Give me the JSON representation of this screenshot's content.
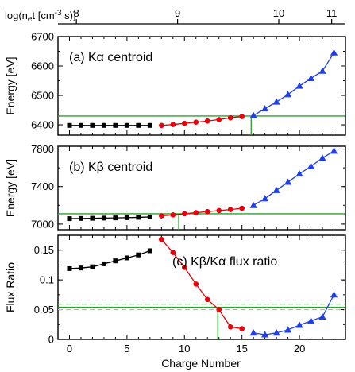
{
  "top_axis": {
    "label": "log(n",
    "label_sub": "e",
    "label_rest": "t [cm",
    "label_sup": "-3",
    "label_end": " s)]",
    "ticks": [
      {
        "value": 8,
        "label": "8",
        "charge": 0.6
      },
      {
        "value": 9,
        "label": "9",
        "charge": 9.4
      },
      {
        "value": 10,
        "label": "10",
        "charge": 18.2
      },
      {
        "value": 11,
        "label": "11",
        "charge": 22.8
      }
    ]
  },
  "chart_data": [
    {
      "type": "line",
      "title": "(a) Kα centroid",
      "ylabel": "Energy [eV]",
      "xlim": [
        -1,
        24
      ],
      "ylim": [
        6365,
        6700
      ],
      "yticks": [
        6400,
        6500,
        6600,
        6700
      ],
      "reference": {
        "y": 6430,
        "x": 15.8
      },
      "series": [
        {
          "marker": "square",
          "color": "#000000",
          "x": [
            0,
            1,
            2,
            3,
            4,
            5,
            6,
            7
          ],
          "y": [
            6398,
            6398,
            6398,
            6398,
            6398,
            6398,
            6398,
            6398
          ]
        },
        {
          "marker": "circle",
          "color": "#e8000b",
          "x": [
            8,
            9,
            10,
            11,
            12,
            13,
            14,
            15
          ],
          "y": [
            6398,
            6401,
            6405,
            6409,
            6413,
            6418,
            6424,
            6428
          ]
        },
        {
          "marker": "triangle",
          "color": "#1f3fe8",
          "x": [
            16,
            17,
            18,
            19,
            20,
            21,
            22,
            23
          ],
          "y": [
            6432,
            6455,
            6478,
            6503,
            6532,
            6558,
            6583,
            6645
          ]
        }
      ]
    },
    {
      "type": "line",
      "title": "(b) Kβ centroid",
      "ylabel": "Energy [eV]",
      "xlim": [
        -1,
        24
      ],
      "ylim": [
        6940,
        7830
      ],
      "yticks": [
        7000,
        7400,
        7800
      ],
      "reference": {
        "y": 7110,
        "x": 9.5
      },
      "series": [
        {
          "marker": "square",
          "color": "#000000",
          "x": [
            0,
            1,
            2,
            3,
            4,
            5,
            6,
            7
          ],
          "y": [
            7058,
            7060,
            7062,
            7064,
            7066,
            7068,
            7072,
            7076
          ]
        },
        {
          "marker": "circle",
          "color": "#e8000b",
          "x": [
            8,
            9,
            10,
            11,
            12,
            13,
            14,
            15
          ],
          "y": [
            7088,
            7098,
            7110,
            7122,
            7133,
            7144,
            7155,
            7168
          ]
        },
        {
          "marker": "triangle",
          "color": "#1f3fe8",
          "x": [
            16,
            17,
            18,
            19,
            20,
            21,
            22,
            23
          ],
          "y": [
            7200,
            7272,
            7360,
            7448,
            7536,
            7616,
            7704,
            7780
          ]
        }
      ]
    },
    {
      "type": "line",
      "title": "(c) Kβ/Kα flux ratio",
      "ylabel": "Flux Ratio",
      "xlabel": "Charge Number",
      "xlim": [
        -1,
        24
      ],
      "ylim": [
        0,
        0.175
      ],
      "yticks": [
        0,
        0.05,
        0.1,
        0.15
      ],
      "ytick_labels": [
        "0",
        "0.05",
        "0.1",
        "0.15"
      ],
      "xticks": [
        0,
        5,
        10,
        15,
        20
      ],
      "reference": {
        "y": 0.054,
        "x": 12.9
      },
      "band": [
        0.05,
        0.059
      ],
      "series": [
        {
          "marker": "square",
          "color": "#000000",
          "x": [
            0,
            1,
            2,
            3,
            4,
            5,
            6,
            7
          ],
          "y": [
            0.119,
            0.12,
            0.122,
            0.127,
            0.132,
            0.137,
            0.142,
            0.149
          ]
        },
        {
          "marker": "circle",
          "color": "#e8000b",
          "x": [
            8,
            9,
            10,
            11,
            12,
            13,
            14,
            15
          ],
          "y": [
            0.168,
            0.146,
            0.121,
            0.093,
            0.067,
            0.05,
            0.021,
            0.018
          ]
        },
        {
          "marker": "triangle",
          "color": "#1f3fe8",
          "x": [
            16,
            17,
            18,
            19,
            20,
            21,
            22,
            23
          ],
          "y": [
            0.011,
            0.008,
            0.011,
            0.016,
            0.024,
            0.031,
            0.038,
            0.075
          ]
        }
      ]
    }
  ],
  "colors": {
    "reference_line": "#2ca02c",
    "band_line": "#8fd18f"
  }
}
